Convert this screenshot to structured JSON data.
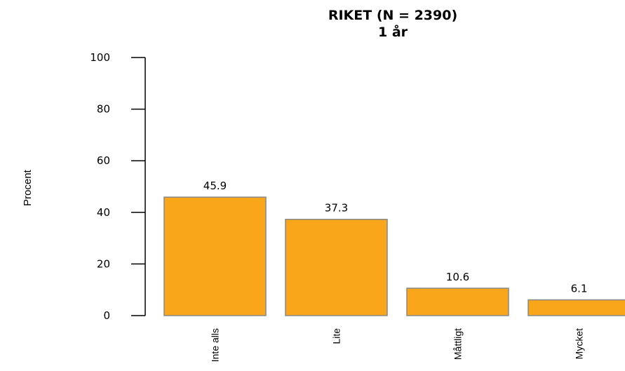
{
  "chart_data": {
    "type": "bar",
    "title": "RIKET (N = 2390)",
    "subtitle": "1 år",
    "ylabel": "Procent",
    "xlabel": "",
    "ylim": [
      0,
      100
    ],
    "yticks": [
      0,
      20,
      40,
      60,
      80,
      100
    ],
    "categories": [
      "Inte alls",
      "Lite",
      "Måttligt",
      "Mycket"
    ],
    "values": [
      45.9,
      37.3,
      10.6,
      6.1
    ],
    "value_labels": [
      "45.9",
      "37.3",
      "10.6",
      "6.1"
    ],
    "bar_color": "#FAA61A",
    "bar_border_color": "#888888",
    "grid": false,
    "legend": "none"
  }
}
